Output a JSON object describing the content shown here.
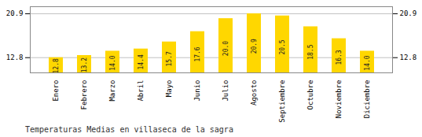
{
  "chart_data": {
    "type": "bar",
    "title": "Temperaturas Medias en villaseca de la sagra",
    "categories": [
      "Enero",
      "Febrero",
      "Marzo",
      "Abril",
      "Mayo",
      "Junio",
      "Julio",
      "Agosto",
      "Septiembre",
      "Octubre",
      "Noviembre",
      "Diciembre"
    ],
    "values": [
      12.8,
      13.2,
      14.0,
      14.4,
      15.7,
      17.6,
      20.0,
      20.9,
      20.5,
      18.5,
      16.3,
      14.0
    ],
    "value_labels": [
      "12.8",
      "13.2",
      "14.0",
      "14.4",
      "15.7",
      "17.6",
      "20.0",
      "20.9",
      "20.5",
      "18.5",
      "16.3",
      "14.0"
    ],
    "color": "#FFD700",
    "ylim": [
      10.0,
      22.2
    ],
    "yticks": [
      12.8,
      20.9
    ],
    "grid": true,
    "data_labels": true
  }
}
